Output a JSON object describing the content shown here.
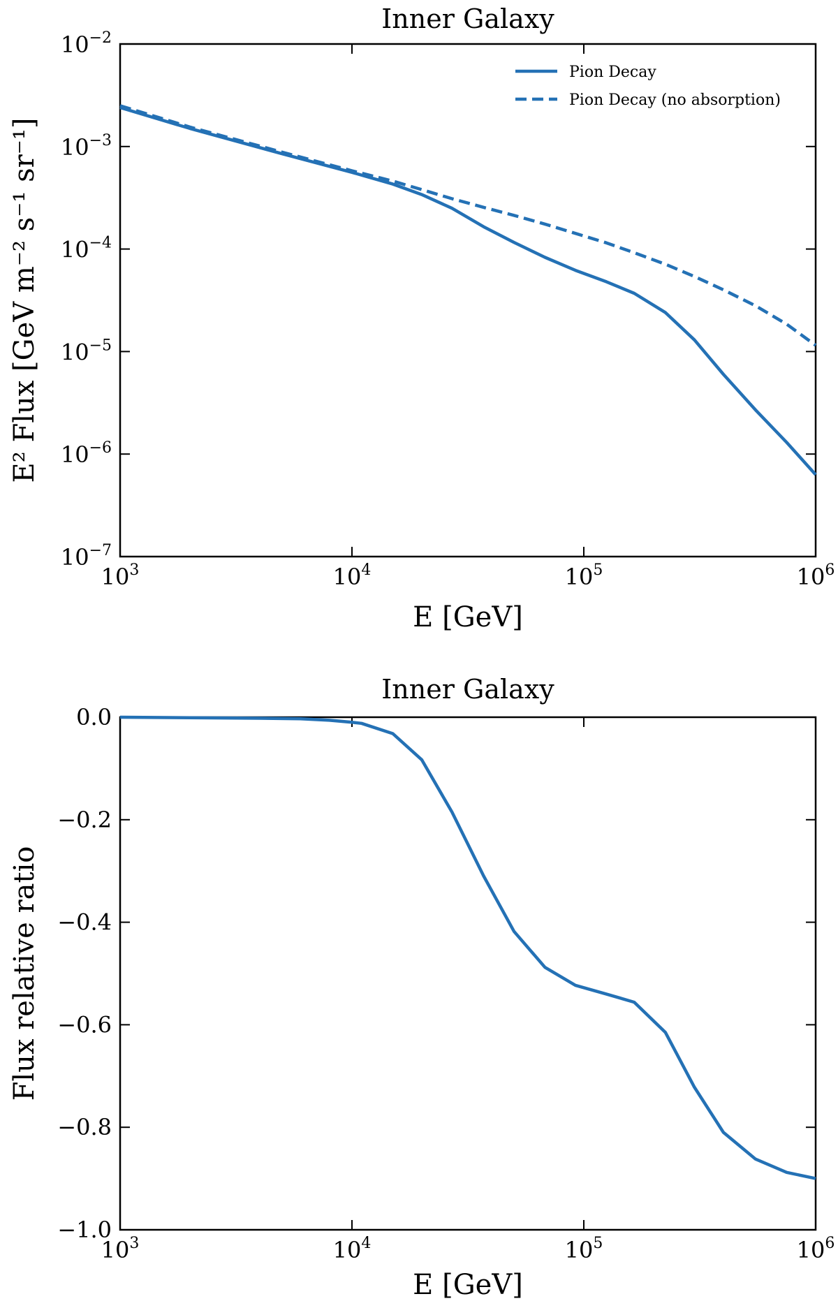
{
  "chart_data": [
    {
      "type": "line",
      "title": "Inner Galaxy",
      "xlabel": "E [GeV]",
      "ylabel": "E² Flux [GeV m⁻² s⁻¹ sr⁻¹]",
      "xscale": "log",
      "yscale": "log",
      "xlim": [
        1000,
        1000000
      ],
      "ylim": [
        1e-07,
        0.01
      ],
      "grid": false,
      "legend_location": "top-right",
      "color": "#2471b5",
      "xticks": [
        {
          "mantissa": "10",
          "exp": "3"
        },
        {
          "mantissa": "10",
          "exp": "4"
        },
        {
          "mantissa": "10",
          "exp": "5"
        },
        {
          "mantissa": "10",
          "exp": "6"
        }
      ],
      "yticks": [
        {
          "mantissa": "10",
          "exp": "−2"
        },
        {
          "mantissa": "10",
          "exp": "−3"
        },
        {
          "mantissa": "10",
          "exp": "−4"
        },
        {
          "mantissa": "10",
          "exp": "−5"
        },
        {
          "mantissa": "10",
          "exp": "−6"
        },
        {
          "mantissa": "10",
          "exp": "−7"
        }
      ],
      "series": [
        {
          "name": "Pion Decay",
          "style": "solid",
          "x": [
            1000,
            2000,
            5000,
            10000,
            15000,
            20000,
            27000,
            37000,
            50000,
            68000,
            92000,
            125000,
            165000,
            225000,
            300000,
            400000,
            550000,
            750000,
            1000000
          ],
          "y": [
            0.0024,
            0.0015,
            0.00085,
            0.00056,
            0.00043,
            0.00034,
            0.00025,
            0.000165,
            0.000116,
            8.3e-05,
            6.2e-05,
            4.8e-05,
            3.7e-05,
            2.4e-05,
            1.3e-05,
            6e-06,
            2.7e-06,
            1.3e-06,
            6.3e-07
          ]
        },
        {
          "name": "Pion Decay (no absorption)",
          "style": "dashed",
          "x": [
            1000,
            2000,
            5000,
            10000,
            15000,
            20000,
            27000,
            37000,
            50000,
            68000,
            92000,
            125000,
            165000,
            225000,
            300000,
            400000,
            550000,
            750000,
            1000000
          ],
          "y": [
            0.0025,
            0.00155,
            0.00088,
            0.00058,
            0.00046,
            0.00038,
            0.00031,
            0.000255,
            0.000213,
            0.000175,
            0.000142,
            0.000115,
            9.2e-05,
            7.1e-05,
            5.4e-05,
            4e-05,
            2.8e-05,
            1.85e-05,
            1.15e-05
          ]
        }
      ]
    },
    {
      "type": "line",
      "title": "Inner Galaxy",
      "xlabel": "E [GeV]",
      "ylabel": "Flux relative ratio",
      "xscale": "log",
      "yscale": "linear",
      "xlim": [
        1000,
        1000000
      ],
      "ylim": [
        -1.0,
        0.0
      ],
      "grid": false,
      "color": "#2471b5",
      "xticks": [
        {
          "mantissa": "10",
          "exp": "3"
        },
        {
          "mantissa": "10",
          "exp": "4"
        },
        {
          "mantissa": "10",
          "exp": "5"
        },
        {
          "mantissa": "10",
          "exp": "6"
        }
      ],
      "yticks": [
        "0.0",
        "−0.2",
        "−0.4",
        "−0.6",
        "−0.8",
        "−1.0"
      ],
      "series": [
        {
          "name": "Flux relative ratio",
          "style": "solid",
          "x": [
            1000,
            2000,
            4000,
            6000,
            8000,
            10000,
            11000,
            15000,
            20000,
            27000,
            37000,
            50000,
            68000,
            92000,
            125000,
            165000,
            225000,
            300000,
            400000,
            550000,
            750000,
            1000000
          ],
          "y": [
            0.0,
            -0.001,
            -0.002,
            -0.003,
            -0.006,
            -0.01,
            -0.012,
            -0.032,
            -0.083,
            -0.185,
            -0.31,
            -0.418,
            -0.488,
            -0.523,
            -0.54,
            -0.556,
            -0.615,
            -0.722,
            -0.81,
            -0.862,
            -0.888,
            -0.9
          ]
        }
      ]
    }
  ]
}
